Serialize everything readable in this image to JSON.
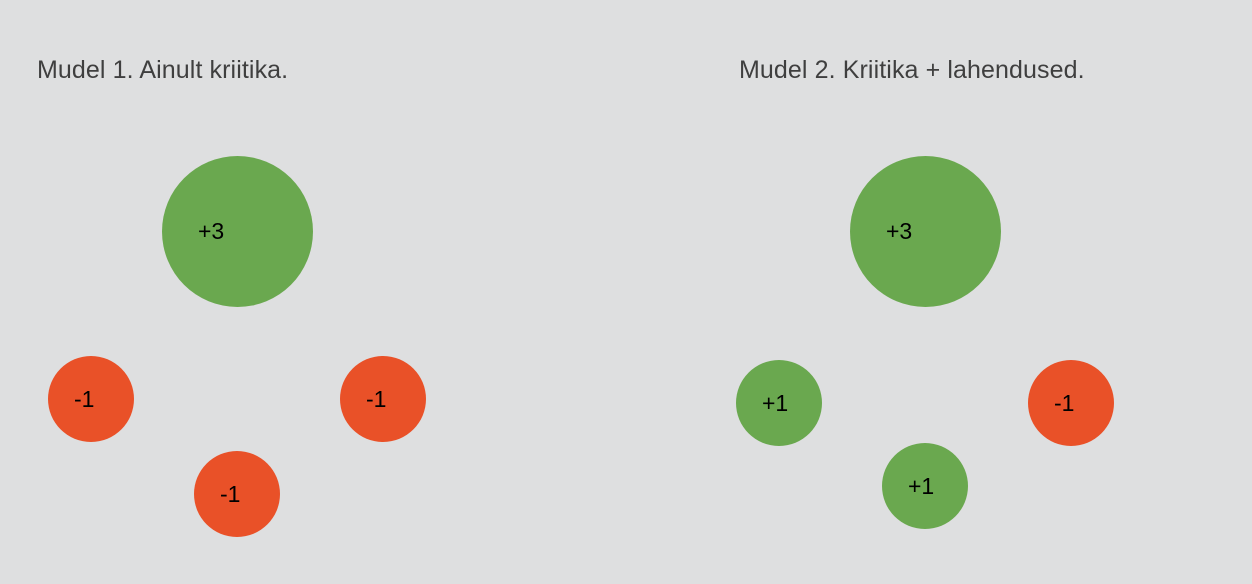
{
  "colors": {
    "background": "#dedfe0",
    "positive": "#6aa84f",
    "negative": "#e95128",
    "title_text": "#3f3f3f",
    "label_text": "#000000"
  },
  "models": [
    {
      "title": "Mudel 1. Ainult kriitika.",
      "nodes": {
        "main": {
          "label": "+3",
          "polarity": "positive"
        },
        "left": {
          "label": "-1",
          "polarity": "negative"
        },
        "right": {
          "label": "-1",
          "polarity": "negative"
        },
        "bottom": {
          "label": "-1",
          "polarity": "negative"
        }
      }
    },
    {
      "title": "Mudel 2. Kriitika + lahendused.",
      "nodes": {
        "main": {
          "label": "+3",
          "polarity": "positive"
        },
        "left": {
          "label": "+1",
          "polarity": "positive"
        },
        "right": {
          "label": "-1",
          "polarity": "negative"
        },
        "bottom": {
          "label": "+1",
          "polarity": "positive"
        }
      }
    }
  ]
}
